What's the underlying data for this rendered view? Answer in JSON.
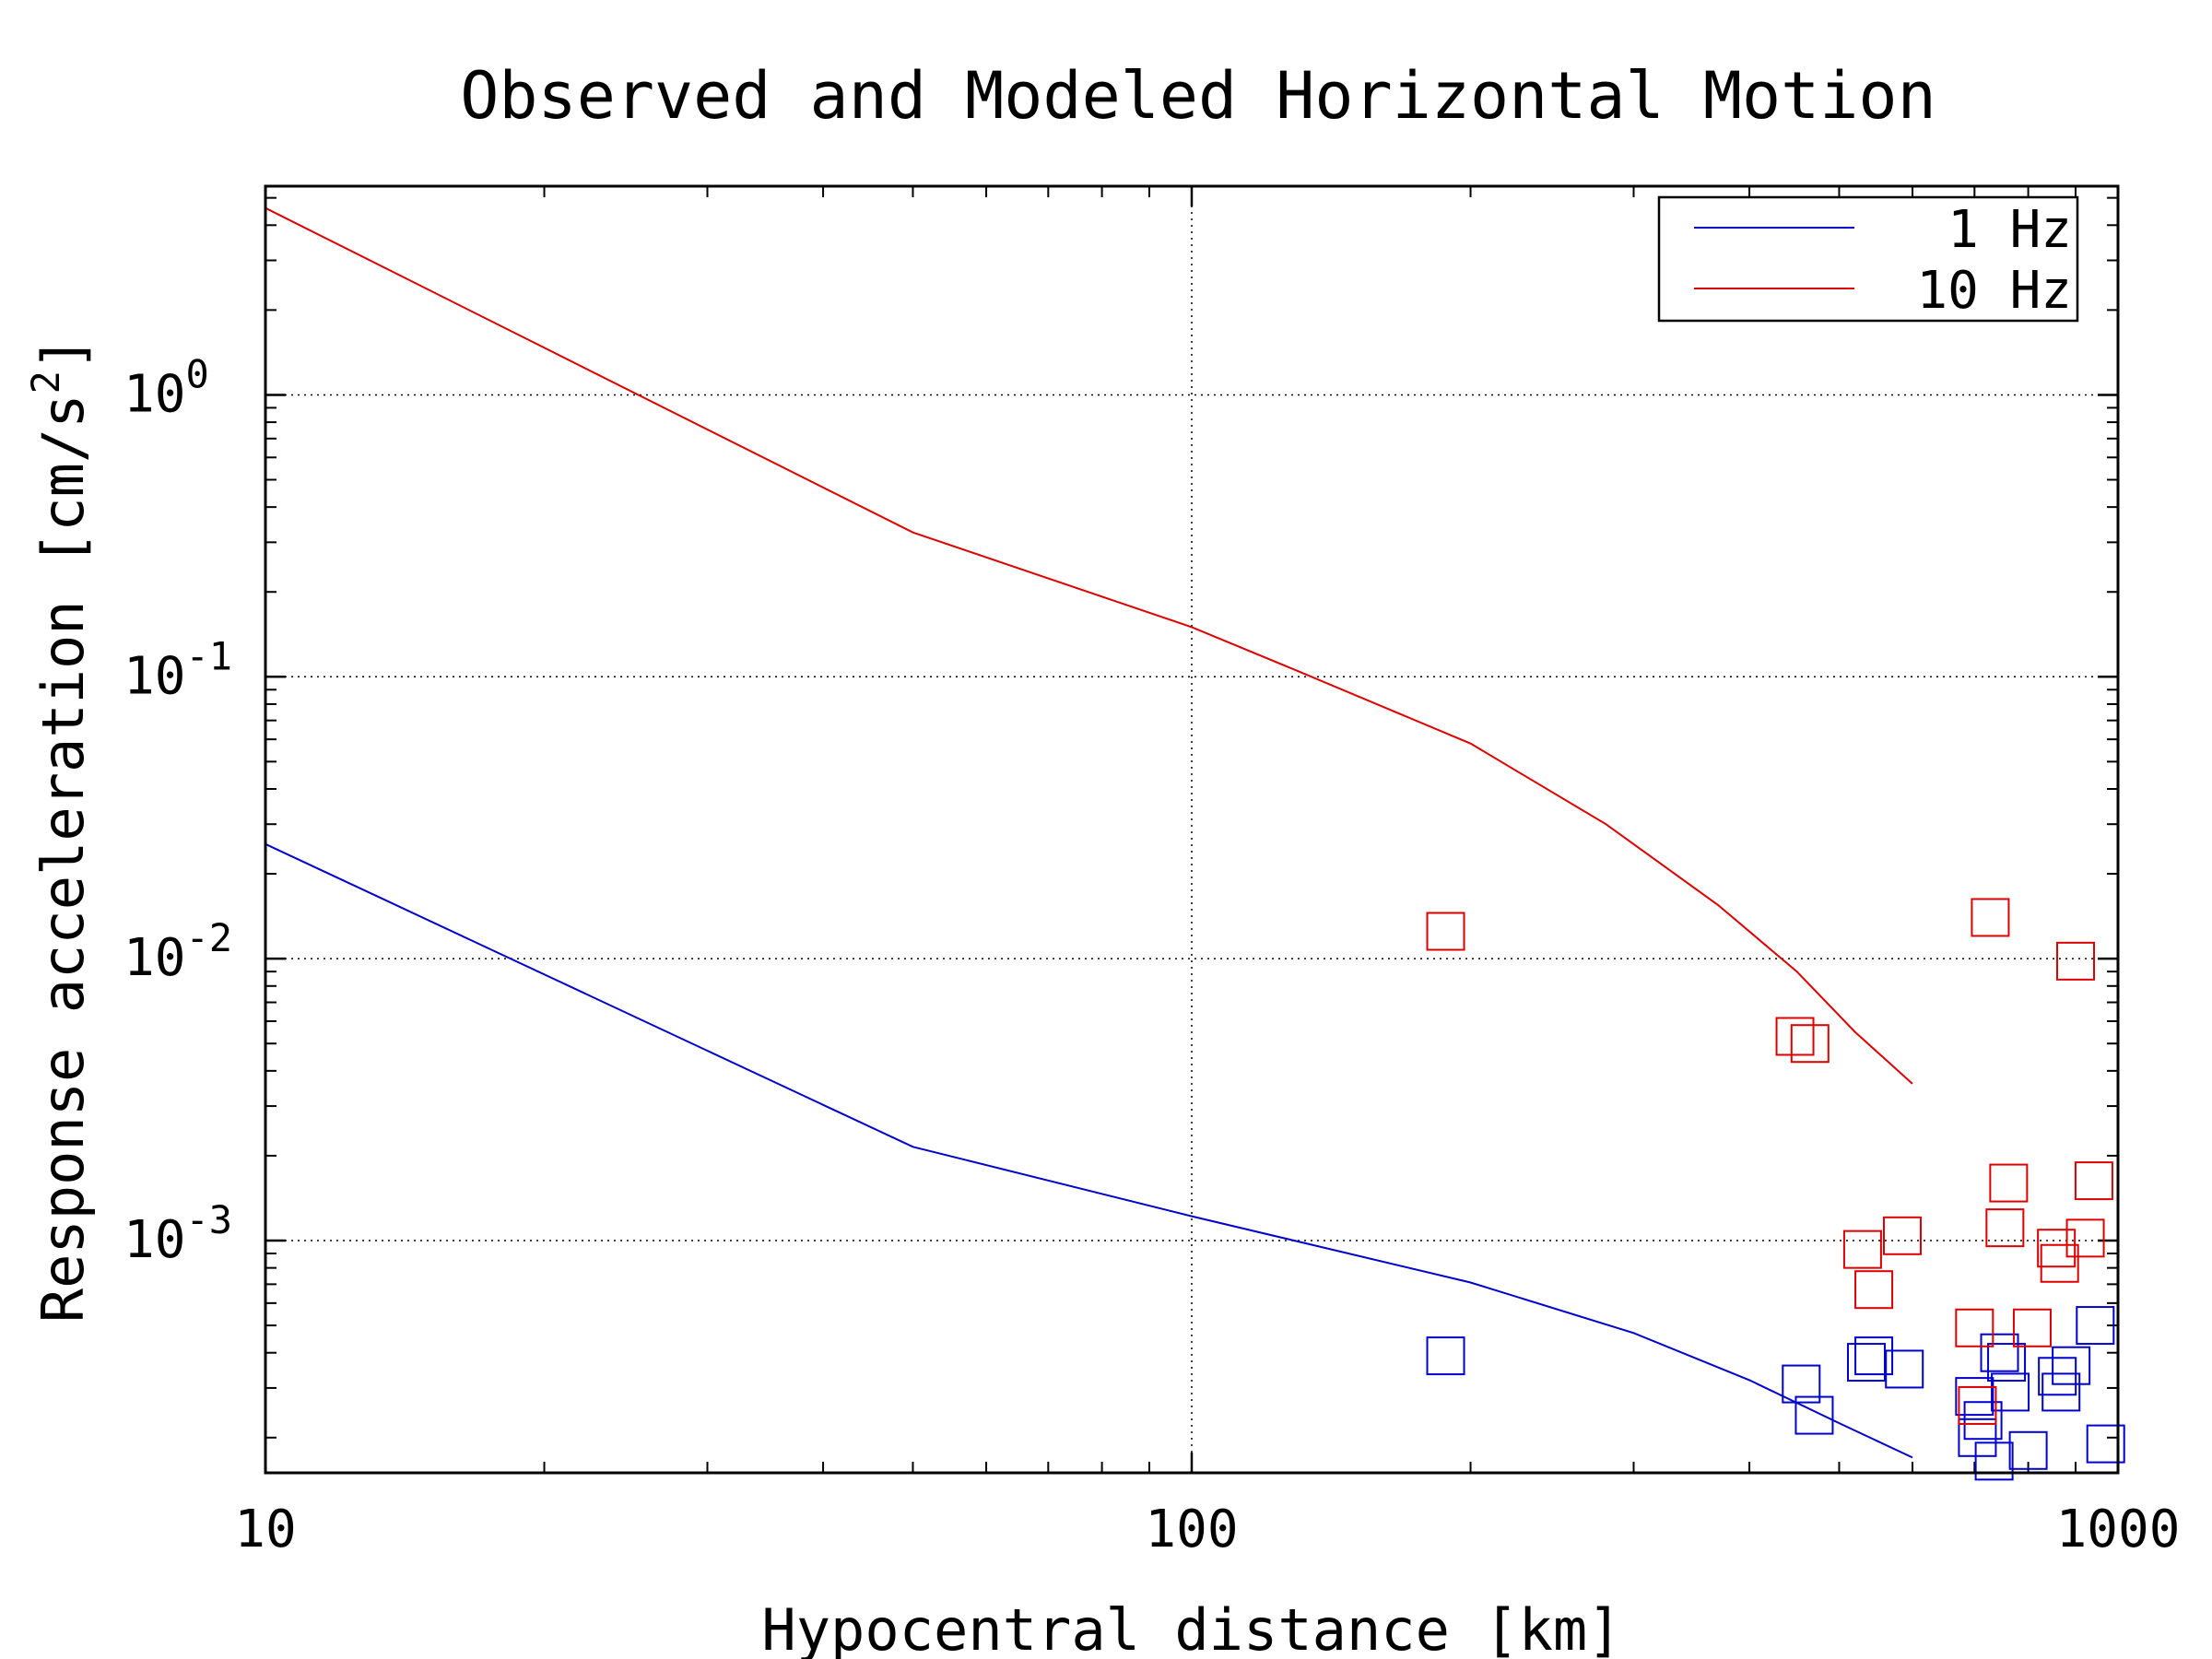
{
  "chart_data": {
    "type": "scatter",
    "title": "Observed and Modeled Horizontal Motion",
    "xlabel": "Hypocentral distance [km]",
    "ylabel": "Response acceleration [cm/s",
    "ylabel_superscript": "2",
    "ylabel_suffix": "]",
    "x_scale": "log",
    "y_scale": "log",
    "xlim": [
      10,
      1000
    ],
    "ylim": [
      0.00015,
      5.5
    ],
    "x_ticks": [
      {
        "value": 10,
        "label": "10"
      },
      {
        "value": 100,
        "label": "100"
      },
      {
        "value": 1000,
        "label": "1000"
      }
    ],
    "y_ticks": [
      {
        "value": 1,
        "base": "10",
        "exp": "0"
      },
      {
        "value": 0.1,
        "base": "10",
        "exp": "-1"
      },
      {
        "value": 0.01,
        "base": "10",
        "exp": "-2"
      },
      {
        "value": 0.001,
        "base": "10",
        "exp": "-3"
      }
    ],
    "grid": true,
    "legend_position": "top-right",
    "lines": [
      {
        "name": "1 Hz",
        "color": "#0000cc",
        "x": [
          10,
          50,
          100,
          200,
          300,
          400,
          500,
          600
        ],
        "y": [
          0.0255,
          0.00215,
          0.00122,
          0.00071,
          0.00047,
          0.00032,
          0.000225,
          0.00017
        ]
      },
      {
        "name": "10 Hz",
        "color": "#dd0000",
        "x": [
          10,
          50,
          100,
          130,
          200,
          280,
          370,
          450,
          520,
          600
        ],
        "y": [
          4.6,
          0.325,
          0.15,
          0.105,
          0.058,
          0.03,
          0.0155,
          0.009,
          0.0055,
          0.0036
        ]
      }
    ],
    "scatter": [
      {
        "color": "#0000cc",
        "x": [
          188,
          455,
          470,
          535,
          545,
          588,
          700,
          705,
          715,
          735,
          745,
          758,
          765,
          800,
          860,
          868,
          890,
          945,
          970
        ],
        "y": [
          0.00039,
          0.00031,
          0.00024,
          0.00037,
          0.00039,
          0.00035,
          0.00028,
          0.0002,
          0.00023,
          0.000165,
          0.0004,
          0.00037,
          0.00029,
          0.00018,
          0.00033,
          0.00029,
          0.00036,
          0.0005,
          0.00019
        ]
      },
      {
        "color": "#dd0000",
        "x": [
          188,
          448,
          465,
          530,
          545,
          585,
          700,
          705,
          728,
          755,
          762,
          808,
          858,
          865,
          900,
          922,
          942
        ],
        "y": [
          0.0125,
          0.0053,
          0.005,
          0.00093,
          0.00067,
          0.00104,
          0.00049,
          0.00026,
          0.014,
          0.00111,
          0.0016,
          0.00049,
          0.00094,
          0.00083,
          0.0098,
          0.00102,
          0.00163
        ]
      }
    ]
  }
}
